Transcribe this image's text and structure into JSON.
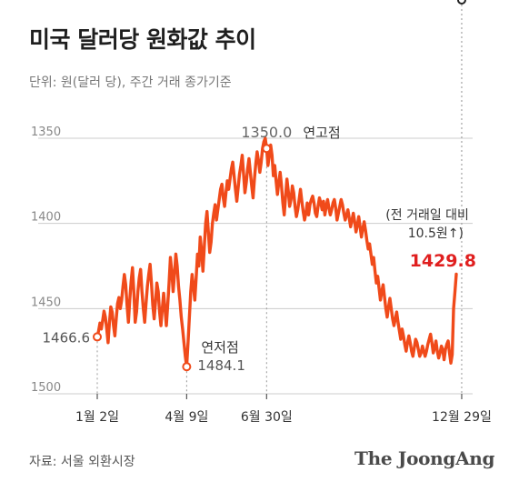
{
  "title": "미국 달러당 원화값 추이",
  "subtitle": "단위: 원(달러 당), 주간 거래 종가기준",
  "source": "자료: 서울 외환시장",
  "brand": "The JoongAng",
  "colors": {
    "line": "#f04a1a",
    "highlight": "#e01f1f",
    "grid": "#cccccc",
    "axis_text": "#888888",
    "annotation_text": "#333333"
  },
  "chart_data": {
    "type": "line",
    "y_inverted": true,
    "ylim": [
      1350,
      1500
    ],
    "yticks": [
      1350,
      1400,
      1450,
      1500
    ],
    "xticks": [
      {
        "label": "1월 2일",
        "index": 0
      },
      {
        "label": "4월 9일",
        "index": 66
      },
      {
        "label": "6월 30일",
        "index": 125
      },
      {
        "label": "12월 29일",
        "index": 269
      }
    ],
    "annotations": {
      "start": {
        "value": "1466.6",
        "index": 0
      },
      "low": {
        "label": "연저점",
        "value": "1484.1",
        "index": 66
      },
      "high": {
        "value": "1350.0",
        "label": "연고점",
        "index": 125
      },
      "last": {
        "value": "1429.8",
        "note_line1": "(전 거래일 대비",
        "note_line2": "10.5원↑)",
        "index": 269
      }
    },
    "series": [
      {
        "values": [
          1466.6,
          1463.0,
          1458.5,
          1462.0,
          1457.0,
          1451.5,
          1455.0,
          1462.0,
          1470.0,
          1458.0,
          1449.0,
          1452.0,
          1460.0,
          1466.0,
          1456.0,
          1447.0,
          1443.5,
          1450.0,
          1445.0,
          1437.0,
          1430.0,
          1436.0,
          1448.0,
          1458.0,
          1445.0,
          1434.0,
          1426.0,
          1440.0,
          1458.0,
          1452.0,
          1440.0,
          1432.0,
          1427.0,
          1440.0,
          1450.0,
          1458.0,
          1447.0,
          1437.0,
          1430.0,
          1424.0,
          1435.0,
          1448.0,
          1456.0,
          1446.0,
          1435.0,
          1440.0,
          1452.0,
          1460.0,
          1450.0,
          1441.0,
          1450.0,
          1460.0,
          1448.0,
          1435.0,
          1420.0,
          1428.0,
          1440.0,
          1430.0,
          1418.0,
          1425.0,
          1437.0,
          1445.0,
          1455.0,
          1462.0,
          1470.0,
          1478.0,
          1484.1,
          1470.0,
          1455.0,
          1440.0,
          1430.0,
          1437.0,
          1445.0,
          1432.0,
          1418.0,
          1425.0,
          1408.0,
          1416.0,
          1428.0,
          1414.0,
          1400.0,
          1393.0,
          1405.0,
          1417.0,
          1411.0,
          1400.0,
          1394.0,
          1389.0,
          1398.0,
          1392.0,
          1386.0,
          1380.0,
          1377.0,
          1385.0,
          1390.0,
          1382.0,
          1375.0,
          1380.0,
          1374.0,
          1368.0,
          1364.0,
          1372.0,
          1380.0,
          1387.0,
          1379.0,
          1371.0,
          1366.0,
          1360.0,
          1371.0,
          1382.0,
          1376.0,
          1368.0,
          1362.0,
          1370.0,
          1378.0,
          1385.0,
          1374.0,
          1365.0,
          1358.0,
          1363.0,
          1370.0,
          1364.0,
          1356.0,
          1352.0,
          1350.0,
          1356.0,
          1366.0,
          1360.0,
          1354.0,
          1360.0,
          1372.0,
          1366.0,
          1375.0,
          1383.0,
          1376.0,
          1370.0,
          1378.0,
          1388.0,
          1395.0,
          1384.0,
          1374.0,
          1381.0,
          1390.0,
          1386.0,
          1378.0,
          1382.0,
          1390.0,
          1396.0,
          1392.0,
          1386.0,
          1380.0,
          1387.0,
          1393.0,
          1398.0,
          1394.0,
          1388.0,
          1395.0,
          1389.0,
          1386.0,
          1384.0,
          1388.0,
          1394.0,
          1396.0,
          1390.0,
          1385.0,
          1388.0,
          1392.0,
          1387.0,
          1395.0,
          1390.0,
          1386.0,
          1391.0,
          1395.0,
          1392.0,
          1388.0,
          1386.0,
          1391.0,
          1398.0,
          1394.0,
          1390.0,
          1386.0,
          1389.0,
          1394.0,
          1398.0,
          1395.0,
          1392.0,
          1397.0,
          1402.0,
          1398.0,
          1394.0,
          1399.0,
          1405.0,
          1401.0,
          1396.0,
          1402.0,
          1408.0,
          1403.0,
          1399.0,
          1404.0,
          1410.0,
          1415.0,
          1412.0,
          1418.0,
          1424.0,
          1420.0,
          1428.0,
          1435.0,
          1431.0,
          1438.0,
          1445.0,
          1440.0,
          1436.0,
          1443.0,
          1450.0,
          1455.0,
          1449.0,
          1444.0,
          1450.0,
          1456.0,
          1460.0,
          1456.0,
          1452.0,
          1458.0,
          1463.0,
          1468.0,
          1462.0,
          1466.0,
          1471.0,
          1475.0,
          1470.0,
          1466.0,
          1470.0,
          1475.0,
          1478.0,
          1473.0,
          1468.0,
          1470.0,
          1474.0,
          1478.0,
          1476.0,
          1472.0,
          1475.0,
          1478.0,
          1475.0,
          1471.0,
          1468.0,
          1465.0,
          1470.0,
          1476.0,
          1473.0,
          1469.0,
          1475.0,
          1479.0,
          1476.0,
          1472.0,
          1474.0,
          1480.0,
          1474.0,
          1471.0,
          1469.0,
          1476.0,
          1482.0,
          1477.0,
          1450.0,
          1440.3,
          1429.8
        ]
      }
    ]
  }
}
